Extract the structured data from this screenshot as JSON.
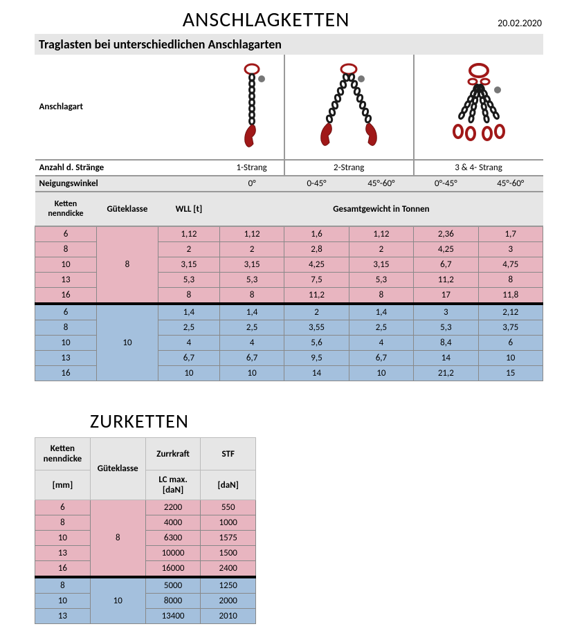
{
  "title": "ANSCHLAGKETTEN",
  "date": "20.02.2020",
  "subtitle": "Traglasten bei unterschiedlichen Anschlagarten",
  "rowlabels": {
    "anschlagart": "Anschlagart",
    "anzahl": "Anzahl d. Stränge",
    "neigung": "Neigungswinkel",
    "ketten": "Ketten nenndicke",
    "gute": "Güteklasse",
    "wll": "WLL [t]",
    "gesamt": "Gesamtgewicht in Tonnen"
  },
  "strands": [
    "1-Strang",
    "2-Strang",
    "3 & 4- Strang"
  ],
  "angles": [
    "0°",
    "0-45°",
    "45°-60°",
    "0°-45°",
    "45°-60°"
  ],
  "grades": [
    "8",
    "10"
  ],
  "rows8": [
    {
      "d": "6",
      "wll": "1,12",
      "v": [
        "1,12",
        "1,6",
        "1,12",
        "2,36",
        "1,7"
      ]
    },
    {
      "d": "8",
      "wll": "2",
      "v": [
        "2",
        "2,8",
        "2",
        "4,25",
        "3"
      ]
    },
    {
      "d": "10",
      "wll": "3,15",
      "v": [
        "3,15",
        "4,25",
        "3,15",
        "6,7",
        "4,75"
      ]
    },
    {
      "d": "13",
      "wll": "5,3",
      "v": [
        "5,3",
        "7,5",
        "5,3",
        "11,2",
        "8"
      ]
    },
    {
      "d": "16",
      "wll": "8",
      "v": [
        "8",
        "11,2",
        "8",
        "17",
        "11,8"
      ]
    }
  ],
  "rows10": [
    {
      "d": "6",
      "wll": "1,4",
      "v": [
        "1,4",
        "2",
        "1,4",
        "3",
        "2,12"
      ]
    },
    {
      "d": "8",
      "wll": "2,5",
      "v": [
        "2,5",
        "3,55",
        "2,5",
        "5,3",
        "3,75"
      ]
    },
    {
      "d": "10",
      "wll": "4",
      "v": [
        "4",
        "5,6",
        "4",
        "8,4",
        "6"
      ]
    },
    {
      "d": "13",
      "wll": "6,7",
      "v": [
        "6,7",
        "9,5",
        "6,7",
        "14",
        "10"
      ]
    },
    {
      "d": "16",
      "wll": "10",
      "v": [
        "10",
        "14",
        "10",
        "21,2",
        "15"
      ]
    }
  ],
  "title2": "ZURKETTEN",
  "t2headers": {
    "ketten": "Ketten nenndicke",
    "gute": "Güteklasse",
    "zurr": "Zurrkraft",
    "stf": "STF",
    "mm": "[mm]",
    "lc": "LC max. [daN]",
    "dan": "[daN]"
  },
  "t2grades": [
    "8",
    "10"
  ],
  "t2rows8": [
    {
      "d": "6",
      "lc": "2200",
      "stf": "550"
    },
    {
      "d": "8",
      "lc": "4000",
      "stf": "1000"
    },
    {
      "d": "10",
      "lc": "6300",
      "stf": "1575"
    },
    {
      "d": "13",
      "lc": "10000",
      "stf": "1500"
    },
    {
      "d": "16",
      "lc": "16000",
      "stf": "2400"
    }
  ],
  "t2rows10": [
    {
      "d": "8",
      "lc": "5000",
      "stf": "1250"
    },
    {
      "d": "10",
      "lc": "8000",
      "stf": "2000"
    },
    {
      "d": "13",
      "lc": "13400",
      "stf": "2010"
    }
  ],
  "colors": {
    "pink": "#e8b5c0",
    "blue": "#a4c0dd",
    "grey": "#e6e6e6",
    "red": "#a01818",
    "black": "#1a1a1a"
  }
}
